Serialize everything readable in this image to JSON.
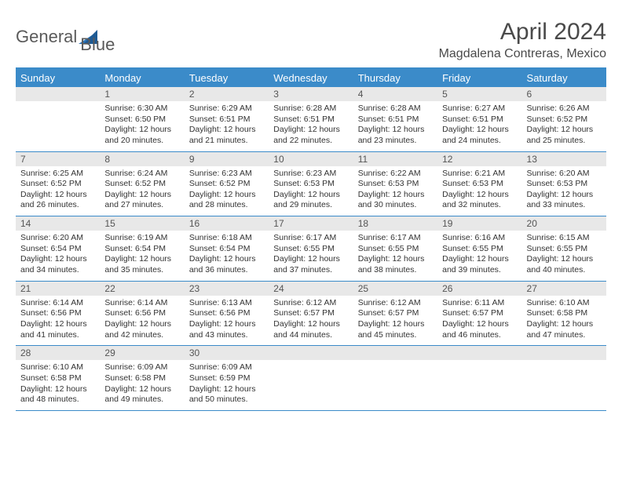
{
  "brand": {
    "part1": "General",
    "part2": "Blue"
  },
  "title": "April 2024",
  "location": "Magdalena Contreras, Mexico",
  "colors": {
    "header_bg": "#3b8bc9",
    "header_text": "#ffffff",
    "daynum_bg": "#e8e8e8",
    "text": "#333333",
    "rule": "#3b8bc9"
  },
  "weekday_labels": [
    "Sunday",
    "Monday",
    "Tuesday",
    "Wednesday",
    "Thursday",
    "Friday",
    "Saturday"
  ],
  "weeks": [
    [
      {
        "n": "",
        "sr": "",
        "ss": "",
        "dl": ""
      },
      {
        "n": "1",
        "sr": "Sunrise: 6:30 AM",
        "ss": "Sunset: 6:50 PM",
        "dl": "Daylight: 12 hours and 20 minutes."
      },
      {
        "n": "2",
        "sr": "Sunrise: 6:29 AM",
        "ss": "Sunset: 6:51 PM",
        "dl": "Daylight: 12 hours and 21 minutes."
      },
      {
        "n": "3",
        "sr": "Sunrise: 6:28 AM",
        "ss": "Sunset: 6:51 PM",
        "dl": "Daylight: 12 hours and 22 minutes."
      },
      {
        "n": "4",
        "sr": "Sunrise: 6:28 AM",
        "ss": "Sunset: 6:51 PM",
        "dl": "Daylight: 12 hours and 23 minutes."
      },
      {
        "n": "5",
        "sr": "Sunrise: 6:27 AM",
        "ss": "Sunset: 6:51 PM",
        "dl": "Daylight: 12 hours and 24 minutes."
      },
      {
        "n": "6",
        "sr": "Sunrise: 6:26 AM",
        "ss": "Sunset: 6:52 PM",
        "dl": "Daylight: 12 hours and 25 minutes."
      }
    ],
    [
      {
        "n": "7",
        "sr": "Sunrise: 6:25 AM",
        "ss": "Sunset: 6:52 PM",
        "dl": "Daylight: 12 hours and 26 minutes."
      },
      {
        "n": "8",
        "sr": "Sunrise: 6:24 AM",
        "ss": "Sunset: 6:52 PM",
        "dl": "Daylight: 12 hours and 27 minutes."
      },
      {
        "n": "9",
        "sr": "Sunrise: 6:23 AM",
        "ss": "Sunset: 6:52 PM",
        "dl": "Daylight: 12 hours and 28 minutes."
      },
      {
        "n": "10",
        "sr": "Sunrise: 6:23 AM",
        "ss": "Sunset: 6:53 PM",
        "dl": "Daylight: 12 hours and 29 minutes."
      },
      {
        "n": "11",
        "sr": "Sunrise: 6:22 AM",
        "ss": "Sunset: 6:53 PM",
        "dl": "Daylight: 12 hours and 30 minutes."
      },
      {
        "n": "12",
        "sr": "Sunrise: 6:21 AM",
        "ss": "Sunset: 6:53 PM",
        "dl": "Daylight: 12 hours and 32 minutes."
      },
      {
        "n": "13",
        "sr": "Sunrise: 6:20 AM",
        "ss": "Sunset: 6:53 PM",
        "dl": "Daylight: 12 hours and 33 minutes."
      }
    ],
    [
      {
        "n": "14",
        "sr": "Sunrise: 6:20 AM",
        "ss": "Sunset: 6:54 PM",
        "dl": "Daylight: 12 hours and 34 minutes."
      },
      {
        "n": "15",
        "sr": "Sunrise: 6:19 AM",
        "ss": "Sunset: 6:54 PM",
        "dl": "Daylight: 12 hours and 35 minutes."
      },
      {
        "n": "16",
        "sr": "Sunrise: 6:18 AM",
        "ss": "Sunset: 6:54 PM",
        "dl": "Daylight: 12 hours and 36 minutes."
      },
      {
        "n": "17",
        "sr": "Sunrise: 6:17 AM",
        "ss": "Sunset: 6:55 PM",
        "dl": "Daylight: 12 hours and 37 minutes."
      },
      {
        "n": "18",
        "sr": "Sunrise: 6:17 AM",
        "ss": "Sunset: 6:55 PM",
        "dl": "Daylight: 12 hours and 38 minutes."
      },
      {
        "n": "19",
        "sr": "Sunrise: 6:16 AM",
        "ss": "Sunset: 6:55 PM",
        "dl": "Daylight: 12 hours and 39 minutes."
      },
      {
        "n": "20",
        "sr": "Sunrise: 6:15 AM",
        "ss": "Sunset: 6:55 PM",
        "dl": "Daylight: 12 hours and 40 minutes."
      }
    ],
    [
      {
        "n": "21",
        "sr": "Sunrise: 6:14 AM",
        "ss": "Sunset: 6:56 PM",
        "dl": "Daylight: 12 hours and 41 minutes."
      },
      {
        "n": "22",
        "sr": "Sunrise: 6:14 AM",
        "ss": "Sunset: 6:56 PM",
        "dl": "Daylight: 12 hours and 42 minutes."
      },
      {
        "n": "23",
        "sr": "Sunrise: 6:13 AM",
        "ss": "Sunset: 6:56 PM",
        "dl": "Daylight: 12 hours and 43 minutes."
      },
      {
        "n": "24",
        "sr": "Sunrise: 6:12 AM",
        "ss": "Sunset: 6:57 PM",
        "dl": "Daylight: 12 hours and 44 minutes."
      },
      {
        "n": "25",
        "sr": "Sunrise: 6:12 AM",
        "ss": "Sunset: 6:57 PM",
        "dl": "Daylight: 12 hours and 45 minutes."
      },
      {
        "n": "26",
        "sr": "Sunrise: 6:11 AM",
        "ss": "Sunset: 6:57 PM",
        "dl": "Daylight: 12 hours and 46 minutes."
      },
      {
        "n": "27",
        "sr": "Sunrise: 6:10 AM",
        "ss": "Sunset: 6:58 PM",
        "dl": "Daylight: 12 hours and 47 minutes."
      }
    ],
    [
      {
        "n": "28",
        "sr": "Sunrise: 6:10 AM",
        "ss": "Sunset: 6:58 PM",
        "dl": "Daylight: 12 hours and 48 minutes."
      },
      {
        "n": "29",
        "sr": "Sunrise: 6:09 AM",
        "ss": "Sunset: 6:58 PM",
        "dl": "Daylight: 12 hours and 49 minutes."
      },
      {
        "n": "30",
        "sr": "Sunrise: 6:09 AM",
        "ss": "Sunset: 6:59 PM",
        "dl": "Daylight: 12 hours and 50 minutes."
      },
      {
        "n": "",
        "sr": "",
        "ss": "",
        "dl": ""
      },
      {
        "n": "",
        "sr": "",
        "ss": "",
        "dl": ""
      },
      {
        "n": "",
        "sr": "",
        "ss": "",
        "dl": ""
      },
      {
        "n": "",
        "sr": "",
        "ss": "",
        "dl": ""
      }
    ]
  ]
}
